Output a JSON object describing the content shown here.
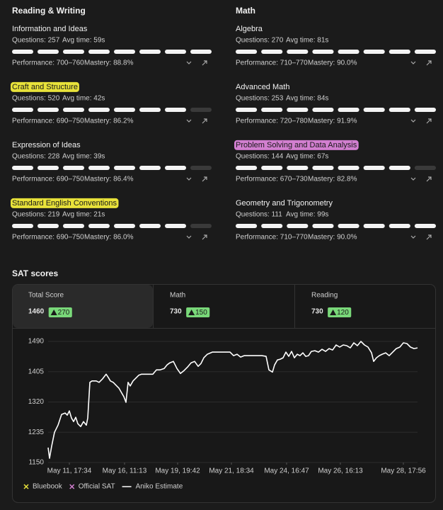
{
  "segments": 8,
  "sections": [
    {
      "title": "Reading & Writing",
      "skills": [
        {
          "name": "Information and Ideas",
          "questions": "Questions: 257",
          "avg_time": "Avg time: 59s",
          "performance": "Performance: 700–760",
          "mastery": "Mastery: 88.8%",
          "level": 8
        },
        {
          "name": "Craft and Structure",
          "questions": "Questions: 520",
          "avg_time": "Avg time: 42s",
          "performance": "Performance: 690–750",
          "mastery": "Mastery: 86.2%",
          "level": 7,
          "highlight": "#e8e23a"
        },
        {
          "name": "Expression of Ideas",
          "questions": "Questions: 228",
          "avg_time": "Avg time: 39s",
          "performance": "Performance: 690–750",
          "mastery": "Mastery: 86.4%",
          "level": 7
        },
        {
          "name": "Standard English Conventions",
          "questions": "Questions: 219",
          "avg_time": "Avg time: 21s",
          "performance": "Performance: 690–750",
          "mastery": "Mastery: 86.0%",
          "level": 7,
          "highlight": "#e8e23a"
        }
      ]
    },
    {
      "title": "Math",
      "skills": [
        {
          "name": "Algebra",
          "questions": "Questions: 270",
          "avg_time": "Avg time: 81s",
          "performance": "Performance: 710–770",
          "mastery": "Mastery: 90.0%",
          "level": 8
        },
        {
          "name": "Advanced Math",
          "questions": "Questions: 253",
          "avg_time": "Avg time: 84s",
          "performance": "Performance: 720–780",
          "mastery": "Mastery: 91.9%",
          "level": 8
        },
        {
          "name": "Problem Solving and Data Analysis",
          "questions": "Questions: 144",
          "avg_time": "Avg time: 67s",
          "performance": "Performance: 670–730",
          "mastery": "Mastery: 82.8%",
          "level": 7,
          "highlight": "#d27fd0"
        },
        {
          "name": "Geometry and Trigonometry",
          "questions": "Questions: 111",
          "avg_time": "Avg time: 99s",
          "performance": "Performance: 710–770",
          "mastery": "Mastery: 90.0%",
          "level": 8
        }
      ]
    }
  ],
  "score_tabs": [
    {
      "label": "Total Score",
      "value": 1460,
      "delta": 270
    },
    {
      "label": "Math",
      "value": 730,
      "delta": 150
    },
    {
      "label": "Reading",
      "value": 730,
      "delta": 120
    }
  ],
  "chart_data": {
    "type": "line",
    "title": "SAT scores",
    "x": [
      0,
      2,
      5,
      9,
      14,
      19,
      24,
      27,
      30,
      33,
      36,
      39,
      42,
      46,
      50,
      54,
      56,
      59,
      62,
      68,
      72,
      77,
      82,
      85,
      88,
      92,
      97,
      100,
      104,
      107,
      110,
      113,
      116,
      120,
      124,
      128,
      132,
      137,
      142,
      148,
      153,
      158,
      164,
      168,
      172,
      177,
      182,
      187,
      192,
      197,
      202,
      207,
      212,
      216,
      220,
      225,
      232,
      242,
      252,
      257,
      262,
      267,
      272,
      277,
      282,
      292,
      302,
      308,
      312,
      317,
      320,
      324,
      328,
      332,
      336,
      340,
      344,
      348,
      352,
      356,
      360,
      364,
      368,
      372,
      377,
      382,
      387,
      392,
      397,
      402,
      407,
      412,
      417,
      422,
      427,
      432,
      437,
      442,
      447,
      452,
      457,
      460,
      464,
      468,
      472,
      477,
      482,
      487,
      492,
      497,
      502,
      507,
      512,
      517,
      522
    ],
    "series": [
      {
        "name": "Aniko Estimate",
        "color": "#ffffff",
        "values": [
          1192,
          1162,
          1196,
          1235,
          1255,
          1285,
          1289,
          1283,
          1295,
          1275,
          1265,
          1277,
          1259,
          1251,
          1265,
          1255,
          1275,
          1375,
          1379,
          1379,
          1375,
          1385,
          1398,
          1389,
          1379,
          1375,
          1365,
          1359,
          1345,
          1335,
          1319,
          1375,
          1365,
          1379,
          1387,
          1395,
          1398,
          1398,
          1398,
          1398,
          1410,
          1410,
          1414,
          1424,
          1430,
          1434,
          1414,
          1400,
          1408,
          1418,
          1430,
          1434,
          1420,
          1428,
          1444,
          1454,
          1460,
          1460,
          1460,
          1460,
          1450,
          1454,
          1446,
          1450,
          1450,
          1450,
          1450,
          1448,
          1410,
          1404,
          1424,
          1438,
          1440,
          1444,
          1460,
          1448,
          1462,
          1444,
          1454,
          1450,
          1458,
          1448,
          1450,
          1462,
          1464,
          1460,
          1468,
          1462,
          1470,
          1466,
          1480,
          1474,
          1480,
          1478,
          1472,
          1486,
          1478,
          1490,
          1480,
          1474,
          1458,
          1434,
          1444,
          1450,
          1454,
          1458,
          1450,
          1460,
          1470,
          1474,
          1486,
          1484,
          1474,
          1470,
          1472
        ]
      }
    ],
    "xlim": [
      0,
      522
    ],
    "xticks": [
      {
        "value": 30,
        "label": "May 11, 17:34"
      },
      {
        "value": 108,
        "label": "May 16, 11:13"
      },
      {
        "value": 183,
        "label": "May 19, 19:42"
      },
      {
        "value": 259,
        "label": "May 21, 18:34"
      },
      {
        "value": 337,
        "label": "May 24, 16:47"
      },
      {
        "value": 413,
        "label": "May 26, 16:13"
      },
      {
        "value": 502,
        "label": "May 28, 17:56"
      }
    ],
    "ylim": [
      1150,
      1490
    ],
    "yticks": [
      1150,
      1235,
      1320,
      1405,
      1490
    ],
    "grid": true,
    "legend": [
      {
        "name": "Bluebook",
        "color": "#e8e23a",
        "marker": "x"
      },
      {
        "name": "Official SAT",
        "color": "#d27fd0",
        "marker": "x"
      },
      {
        "name": "Aniko Estimate",
        "color": "#ffffff",
        "marker": "line"
      }
    ]
  }
}
